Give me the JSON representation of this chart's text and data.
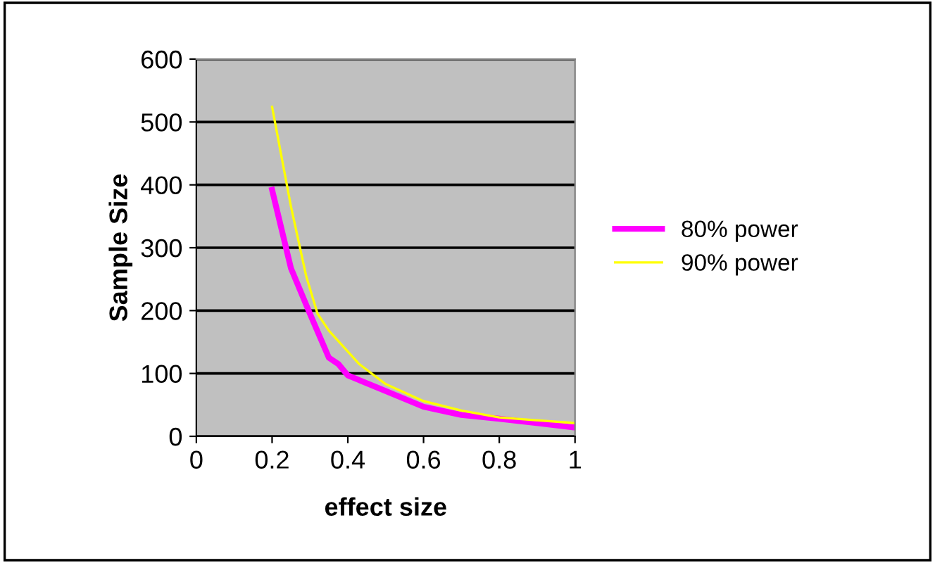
{
  "chart_data": {
    "type": "line",
    "xlabel": "effect size",
    "ylabel": "Sample Size",
    "xlim": [
      0,
      1
    ],
    "xticks": [
      0,
      {
        "value": 0.2,
        "label": "0.2"
      },
      {
        "value": 0.4,
        "label": "0.4"
      },
      {
        "value": 0.6,
        "label": "0.6"
      },
      {
        "value": 0.8,
        "label": "0.8"
      },
      1
    ],
    "ylim": [
      0,
      600
    ],
    "yticks": [
      0,
      100,
      200,
      300,
      400,
      500,
      600
    ],
    "grid": "y",
    "legend": "right",
    "marker": "none",
    "series": [
      {
        "name": "80% power",
        "color": "#ff00ff",
        "x": [
          0.2,
          0.25,
          0.3,
          0.35,
          0.375,
          0.4,
          0.5,
          0.6,
          0.7,
          0.8,
          1.0
        ],
        "values": [
          392,
          267,
          195,
          125,
          115,
          97,
          72,
          47,
          34,
          28,
          14
        ]
      },
      {
        "name": "90% power",
        "color": "#ffff00",
        "x": [
          0.2,
          0.25,
          0.29,
          0.32,
          0.35,
          0.43,
          0.5,
          0.6,
          0.7,
          0.8,
          1.0
        ],
        "values": [
          524,
          365,
          255,
          195,
          168,
          115,
          83,
          56,
          41,
          30,
          21
        ]
      }
    ]
  }
}
